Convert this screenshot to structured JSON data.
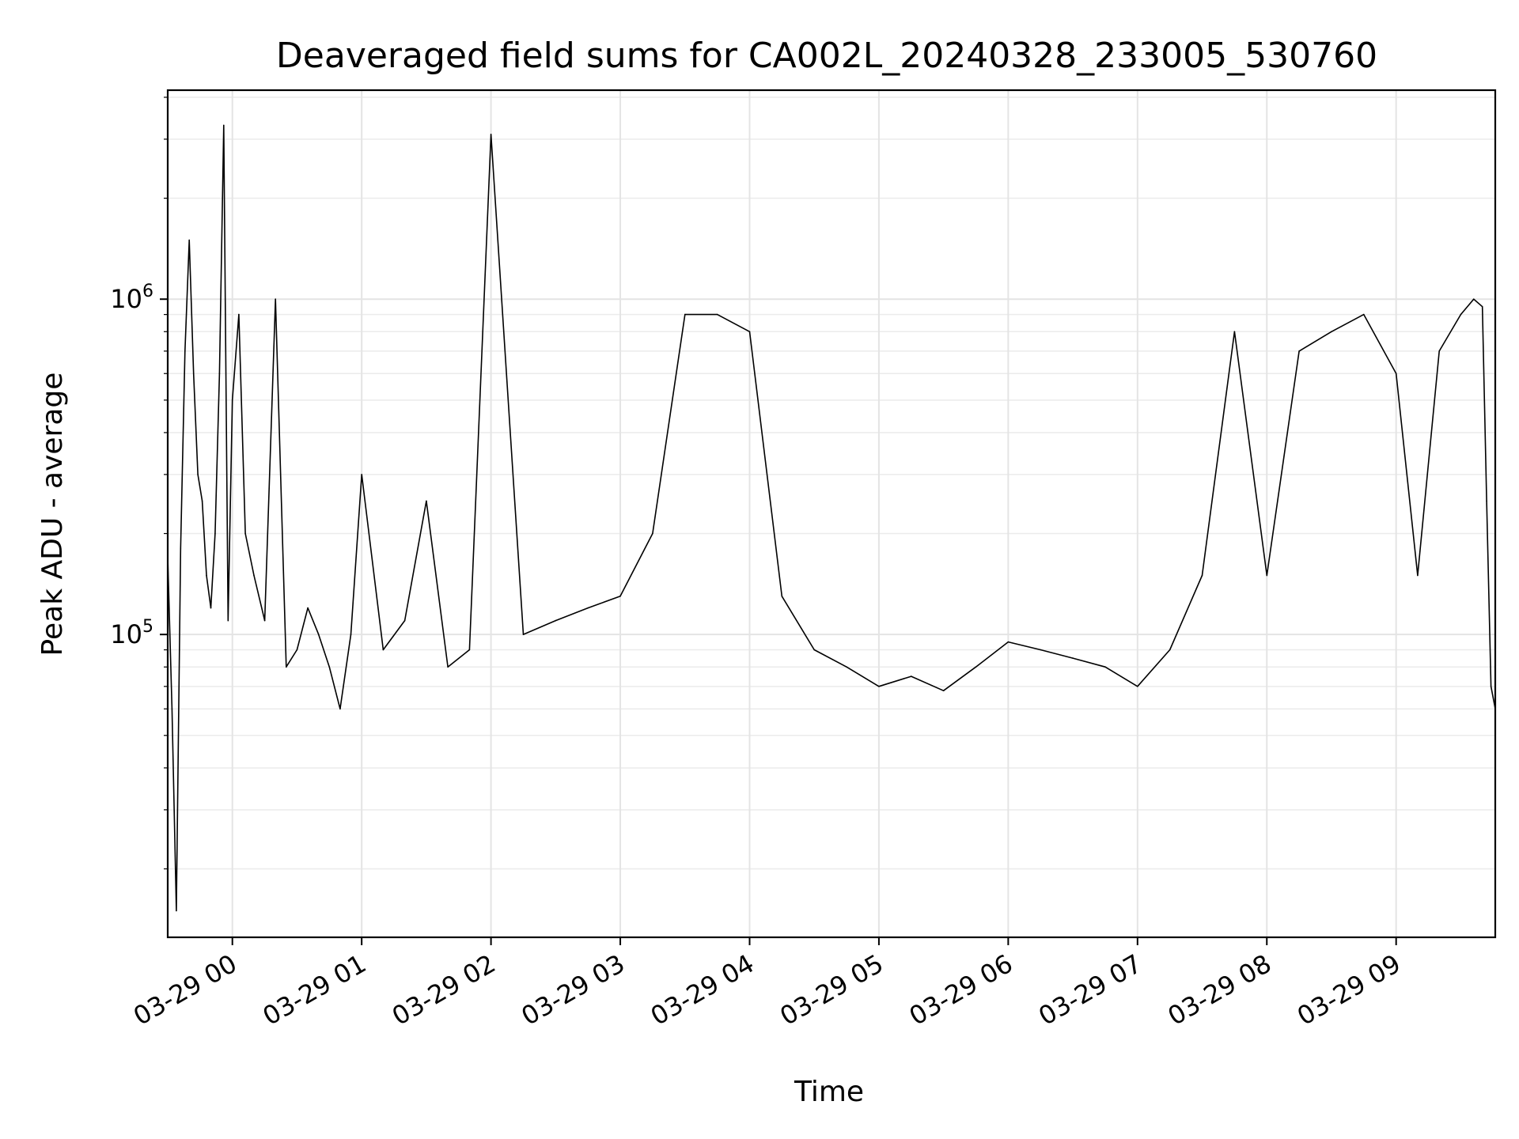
{
  "chart_data": {
    "type": "line",
    "title": "Deaveraged field sums for CA002L_20240328_233005_530760",
    "xlabel": "Time",
    "ylabel": "Peak ADU - average",
    "x_ticks": [
      "03-29 00",
      "03-29 01",
      "03-29 02",
      "03-29 03",
      "03-29 04",
      "03-29 05",
      "03-29 06",
      "03-29 07",
      "03-29 08",
      "03-29 09"
    ],
    "y_ticks": [
      {
        "value": 100000,
        "base": "10",
        "exp": "5"
      },
      {
        "value": 1000000,
        "base": "10",
        "exp": "6"
      }
    ],
    "y_scale": "log",
    "ylim": [
      12500,
      4200000
    ],
    "xlim": [
      "2024-03-28 23:30",
      "2024-03-29 09:46"
    ],
    "grid": true,
    "line_color": "#000000",
    "series": [
      {
        "x": [
          "2024-03-28 23:30",
          "2024-03-28 23:32",
          "2024-03-28 23:34",
          "2024-03-28 23:36",
          "2024-03-28 23:38",
          "2024-03-28 23:40",
          "2024-03-28 23:42",
          "2024-03-28 23:44",
          "2024-03-28 23:46",
          "2024-03-28 23:48",
          "2024-03-28 23:50",
          "2024-03-28 23:52",
          "2024-03-28 23:54",
          "2024-03-28 23:56",
          "2024-03-28 23:58",
          "2024-03-29 00:00",
          "2024-03-29 00:03",
          "2024-03-29 00:06",
          "2024-03-29 00:10",
          "2024-03-29 00:15",
          "2024-03-29 00:20",
          "2024-03-29 00:25",
          "2024-03-29 00:30",
          "2024-03-29 00:35",
          "2024-03-29 00:40",
          "2024-03-29 00:45",
          "2024-03-29 00:50",
          "2024-03-29 00:55",
          "2024-03-29 01:00",
          "2024-03-29 01:10",
          "2024-03-29 01:20",
          "2024-03-29 01:30",
          "2024-03-29 01:40",
          "2024-03-29 01:50",
          "2024-03-29 02:00",
          "2024-03-29 02:15",
          "2024-03-29 02:30",
          "2024-03-29 02:45",
          "2024-03-29 03:00",
          "2024-03-29 03:15",
          "2024-03-29 03:30",
          "2024-03-29 03:45",
          "2024-03-29 04:00",
          "2024-03-29 04:15",
          "2024-03-29 04:30",
          "2024-03-29 04:45",
          "2024-03-29 05:00",
          "2024-03-29 05:15",
          "2024-03-29 05:30",
          "2024-03-29 05:45",
          "2024-03-29 06:00",
          "2024-03-29 06:15",
          "2024-03-29 06:30",
          "2024-03-29 06:45",
          "2024-03-29 07:00",
          "2024-03-29 07:15",
          "2024-03-29 07:30",
          "2024-03-29 07:45",
          "2024-03-29 08:00",
          "2024-03-29 08:15",
          "2024-03-29 08:30",
          "2024-03-29 08:45",
          "2024-03-29 09:00",
          "2024-03-29 09:10",
          "2024-03-29 09:20",
          "2024-03-29 09:30",
          "2024-03-29 09:36",
          "2024-03-29 09:40",
          "2024-03-29 09:42",
          "2024-03-29 09:44",
          "2024-03-29 09:46"
        ],
        "y": [
          170000,
          60000,
          15000,
          180000,
          700000,
          1500000,
          600000,
          300000,
          250000,
          150000,
          120000,
          200000,
          600000,
          3300000,
          110000,
          500000,
          900000,
          200000,
          150000,
          110000,
          1000000,
          80000,
          90000,
          120000,
          100000,
          80000,
          60000,
          100000,
          300000,
          90000,
          110000,
          250000,
          80000,
          90000,
          3100000,
          100000,
          110000,
          120000,
          130000,
          200000,
          900000,
          900000,
          800000,
          130000,
          90000,
          80000,
          70000,
          75000,
          68000,
          80000,
          95000,
          90000,
          85000,
          80000,
          70000,
          90000,
          150000,
          800000,
          150000,
          700000,
          800000,
          900000,
          600000,
          150000,
          700000,
          900000,
          1000000,
          950000,
          250000,
          70000,
          60000
        ]
      }
    ]
  }
}
